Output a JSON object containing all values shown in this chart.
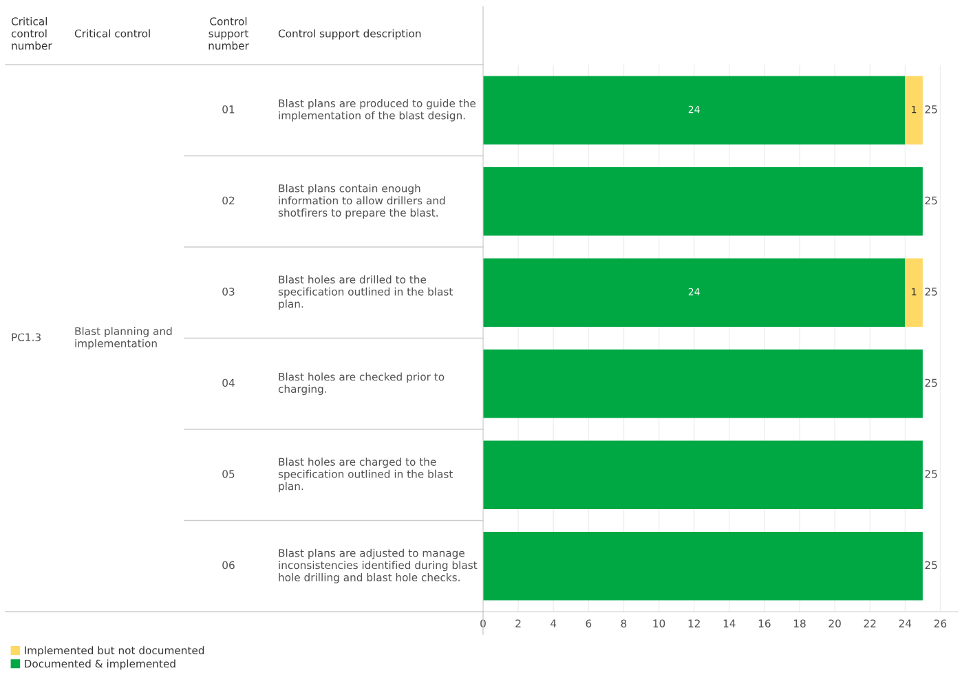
{
  "chart_data": {
    "type": "bar",
    "orientation": "horizontal",
    "stacked": true,
    "categories": [
      "Blast plans are produced to guide the implementation of the blast design.",
      "Blast plans contain enough information to allow drillers and shotfirers to prepare the blast.",
      "Blast holes are drilled to the specification outlined in the blast plan.",
      "Blast holes are checked prior to charging.",
      "Blast holes are charged to the specification outlined in the blast plan.",
      "Blast plans are adjusted to manage inconsistencies identified during blast hole drilling and blast hole checks."
    ],
    "series": [
      {
        "name": "Documented & implemented",
        "color": "#00a844",
        "values": [
          24,
          25,
          24,
          25,
          25,
          25
        ],
        "value_labels": [
          "24",
          null,
          "24",
          null,
          null,
          null
        ]
      },
      {
        "name": "Implemented but not documented",
        "color": "#ffd966",
        "values": [
          1,
          null,
          1,
          null,
          null,
          null
        ],
        "value_labels": [
          "1",
          null,
          "1",
          null,
          null,
          null
        ]
      }
    ],
    "totals": [
      "25",
      "25",
      "25",
      "25",
      "25",
      "25"
    ],
    "xlim": [
      0,
      27
    ],
    "xticks": [
      0,
      2,
      4,
      6,
      8,
      10,
      12,
      14,
      16,
      18,
      20,
      22,
      24,
      26
    ],
    "grid": "x",
    "legend": "bottom left",
    "annotations": [
      "Critical control number",
      "Critical control",
      "Control support number",
      "Control support description",
      "PC1.3",
      "Blast planning and implementation",
      "01",
      "02",
      "03",
      "04",
      "05",
      "06"
    ]
  }
}
